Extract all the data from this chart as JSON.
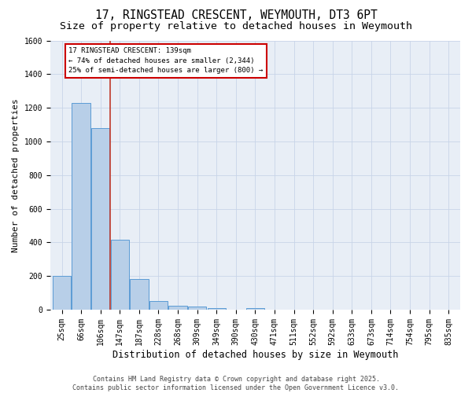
{
  "title1": "17, RINGSTEAD CRESCENT, WEYMOUTH, DT3 6PT",
  "title2": "Size of property relative to detached houses in Weymouth",
  "xlabel": "Distribution of detached houses by size in Weymouth",
  "ylabel": "Number of detached properties",
  "bin_labels": [
    "25sqm",
    "66sqm",
    "106sqm",
    "147sqm",
    "187sqm",
    "228sqm",
    "268sqm",
    "309sqm",
    "349sqm",
    "390sqm",
    "430sqm",
    "471sqm",
    "511sqm",
    "552sqm",
    "592sqm",
    "633sqm",
    "673sqm",
    "714sqm",
    "754sqm",
    "795sqm",
    "835sqm"
  ],
  "bar_values": [
    200,
    1230,
    1080,
    415,
    180,
    50,
    25,
    18,
    10,
    0,
    8,
    0,
    0,
    0,
    0,
    0,
    0,
    0,
    0,
    0,
    0
  ],
  "bar_color": "#b8cfe8",
  "bar_edge_color": "#5b9bd5",
  "grid_color": "#c8d4e8",
  "bg_color": "#e8eef6",
  "vline_color": "#c0392b",
  "vline_pos": 2.5,
  "annotation_text": "17 RINGSTEAD CRESCENT: 139sqm\n← 74% of detached houses are smaller (2,344)\n25% of semi-detached houses are larger (800) →",
  "annotation_box_color": "white",
  "annotation_edge_color": "#cc0000",
  "ylim": [
    0,
    1600
  ],
  "yticks": [
    0,
    200,
    400,
    600,
    800,
    1000,
    1200,
    1400,
    1600
  ],
  "footer": "Contains HM Land Registry data © Crown copyright and database right 2025.\nContains public sector information licensed under the Open Government Licence v3.0.",
  "title1_fontsize": 10.5,
  "title2_fontsize": 9.5,
  "xlabel_fontsize": 8.5,
  "ylabel_fontsize": 8,
  "tick_fontsize": 7,
  "annot_fontsize": 6.5,
  "footer_fontsize": 6
}
